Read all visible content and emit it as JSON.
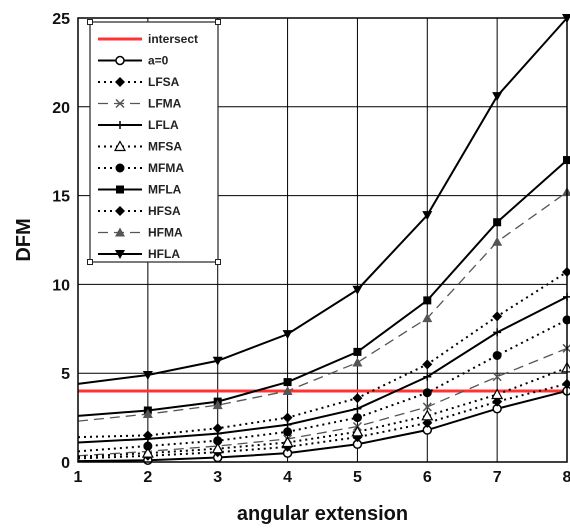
{
  "chart_data": {
    "type": "line",
    "xlabel": "angular extension",
    "ylabel": "DFM",
    "xlim": [
      1,
      8
    ],
    "ylim": [
      0,
      25
    ],
    "xticks": [
      1,
      2,
      3,
      4,
      5,
      6,
      7,
      8
    ],
    "yticks": [
      0,
      5,
      10,
      15,
      20,
      25
    ],
    "grid": true,
    "legend_position": "top-left",
    "series": [
      {
        "name": "intersect",
        "color": "#ff3333",
        "dash": "solid",
        "width": 3,
        "marker": "none",
        "x": [
          1,
          8
        ],
        "y": [
          4,
          4
        ]
      },
      {
        "name": "a=0",
        "color": "#000000",
        "dash": "solid",
        "width": 2,
        "marker": "circle-open",
        "x": [
          1,
          2,
          3,
          4,
          5,
          6,
          7,
          8
        ],
        "y": [
          0.05,
          0.1,
          0.25,
          0.5,
          1.0,
          1.8,
          3.0,
          4.0
        ]
      },
      {
        "name": "LFSA",
        "color": "#000000",
        "dash": "dot",
        "width": 2,
        "marker": "diamond",
        "x": [
          1,
          2,
          3,
          4,
          5,
          6,
          7,
          8
        ],
        "y": [
          0.2,
          0.35,
          0.55,
          0.85,
          1.4,
          2.2,
          3.4,
          4.4
        ]
      },
      {
        "name": "LFMA",
        "color": "#555555",
        "dash": "dash",
        "width": 1.3,
        "marker": "x",
        "x": [
          1,
          2,
          3,
          4,
          5,
          6,
          7,
          8
        ],
        "y": [
          0.35,
          0.6,
          0.9,
          1.3,
          2.0,
          3.1,
          4.8,
          6.4
        ]
      },
      {
        "name": "LFLA",
        "color": "#000000",
        "dash": "solid",
        "width": 2,
        "marker": "plus",
        "x": [
          1,
          2,
          3,
          4,
          5,
          6,
          7,
          8
        ],
        "y": [
          1.1,
          1.3,
          1.6,
          2.1,
          3.0,
          4.8,
          7.3,
          9.3
        ]
      },
      {
        "name": "MFSA",
        "color": "#000000",
        "dash": "dot",
        "width": 2,
        "marker": "triangle-open",
        "x": [
          1,
          2,
          3,
          4,
          5,
          6,
          7,
          8
        ],
        "y": [
          0.3,
          0.5,
          0.75,
          1.1,
          1.7,
          2.6,
          3.8,
          5.3
        ]
      },
      {
        "name": "MFMA",
        "color": "#000000",
        "dash": "dot",
        "width": 2,
        "marker": "circle",
        "x": [
          1,
          2,
          3,
          4,
          5,
          6,
          7,
          8
        ],
        "y": [
          0.6,
          0.9,
          1.2,
          1.7,
          2.5,
          3.9,
          6.0,
          8.0
        ]
      },
      {
        "name": "MFLA",
        "color": "#000000",
        "dash": "solid",
        "width": 2,
        "marker": "square",
        "x": [
          1,
          2,
          3,
          4,
          5,
          6,
          7,
          8
        ],
        "y": [
          2.6,
          2.9,
          3.4,
          4.5,
          6.2,
          9.1,
          13.5,
          17.0
        ]
      },
      {
        "name": "HFSA",
        "color": "#000000",
        "dash": "dot",
        "width": 2,
        "marker": "diamond",
        "x": [
          1,
          2,
          3,
          4,
          5,
          6,
          7,
          8
        ],
        "y": [
          1.4,
          1.5,
          1.9,
          2.5,
          3.6,
          5.5,
          8.2,
          10.7
        ]
      },
      {
        "name": "HFMA",
        "color": "#555555",
        "dash": "dash",
        "width": 1.3,
        "marker": "triangle",
        "x": [
          1,
          2,
          3,
          4,
          5,
          6,
          7,
          8
        ],
        "y": [
          2.3,
          2.7,
          3.2,
          4.0,
          5.6,
          8.1,
          12.4,
          15.2
        ]
      },
      {
        "name": "HFLA",
        "color": "#000000",
        "dash": "solid",
        "width": 2,
        "marker": "triangle-down",
        "x": [
          1,
          2,
          3,
          4,
          5,
          6,
          7,
          8
        ],
        "y": [
          4.4,
          4.9,
          5.7,
          7.2,
          9.7,
          13.9,
          20.6,
          25.0
        ]
      }
    ]
  }
}
